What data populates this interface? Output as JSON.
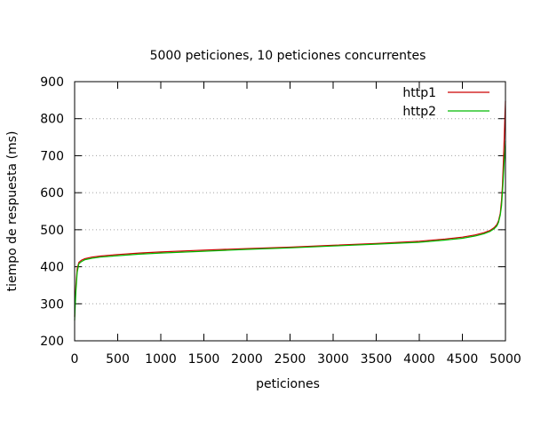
{
  "chart_data": {
    "type": "line",
    "title": "5000 peticiones, 10 peticiones concurrentes",
    "xlabel": "peticiones",
    "ylabel": "tiempo de respuesta (ms)",
    "xlim": [
      0,
      5000
    ],
    "ylim": [
      200,
      900
    ],
    "xticks": [
      0,
      500,
      1000,
      1500,
      2000,
      2500,
      3000,
      3500,
      4000,
      4500,
      5000
    ],
    "yticks": [
      200,
      300,
      400,
      500,
      600,
      700,
      800,
      900
    ],
    "grid": "horizontal dotted",
    "legend_position": "top-right",
    "series": [
      {
        "name": "http1",
        "color": "#cc0000",
        "x": [
          0,
          5,
          15,
          30,
          50,
          80,
          120,
          200,
          300,
          500,
          750,
          1000,
          1500,
          2000,
          2500,
          3000,
          3500,
          4000,
          4300,
          4500,
          4650,
          4750,
          4820,
          4870,
          4900,
          4920,
          4940,
          4955,
          4965,
          4975,
          4985,
          4993,
          5000
        ],
        "values": [
          265,
          300,
          350,
          395,
          412,
          418,
          422,
          426,
          429,
          433,
          437,
          440,
          445,
          449,
          453,
          458,
          463,
          469,
          475,
          480,
          486,
          492,
          498,
          506,
          514,
          524,
          545,
          580,
          620,
          680,
          740,
          800,
          848
        ]
      },
      {
        "name": "http2",
        "color": "#00bb00",
        "x": [
          0,
          5,
          15,
          30,
          50,
          80,
          120,
          200,
          300,
          500,
          750,
          1000,
          1500,
          2000,
          2500,
          3000,
          3500,
          4000,
          4300,
          4500,
          4650,
          4750,
          4820,
          4870,
          4900,
          4920,
          4940,
          4955,
          4965,
          4975,
          4985,
          4993,
          5000
        ],
        "values": [
          255,
          285,
          335,
          385,
          408,
          414,
          419,
          423,
          426,
          430,
          434,
          437,
          442,
          447,
          451,
          456,
          461,
          466,
          472,
          477,
          483,
          489,
          495,
          503,
          510,
          520,
          540,
          565,
          600,
          640,
          680,
          710,
          740
        ]
      }
    ]
  }
}
